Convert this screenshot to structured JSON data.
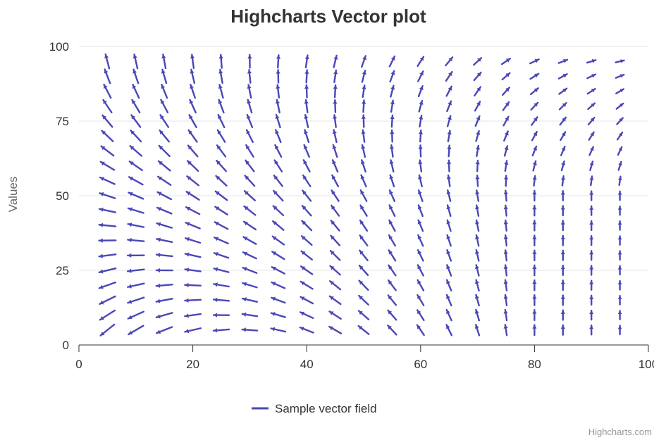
{
  "chart_data": {
    "type": "vector",
    "title": "Highcharts Vector plot",
    "xlabel": "",
    "ylabel": "Values",
    "xlim": [
      0,
      100
    ],
    "ylim": [
      0,
      100
    ],
    "x_ticks": [
      "0",
      "20",
      "40",
      "60",
      "80",
      "100"
    ],
    "y_ticks": [
      "0",
      "25",
      "50",
      "75",
      "100"
    ],
    "grid": "horizontal",
    "legend_position": "bottom",
    "series": [
      {
        "name": "Sample vector field",
        "color": "#4a47b6",
        "grid_x_start": 5,
        "grid_x_step": 5,
        "grid_x_count": 19,
        "grid_y_start": 5,
        "grid_y_step": 5,
        "grid_y_count": 19,
        "field": "vectors point toward upper-left near x=5, rotate through left/down-left at low x and low y, point straight up near x=90-95, lengthen toward the left and shrink toward the upper right"
      }
    ],
    "legend_label": "Sample vector field",
    "credits": "Highcharts.com"
  }
}
